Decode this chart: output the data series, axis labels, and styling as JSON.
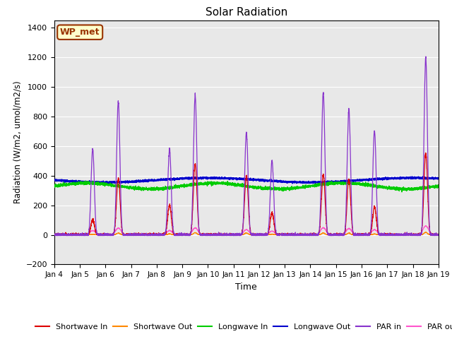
{
  "title": "Solar Radiation",
  "xlabel": "Time",
  "ylabel": "Radiation (W/m2, umol/m2/s)",
  "ylim": [
    -200,
    1450
  ],
  "yticks": [
    -200,
    0,
    200,
    400,
    600,
    800,
    1000,
    1200,
    1400
  ],
  "xlim": [
    0,
    15
  ],
  "background_color": "#e8e8e8",
  "legend_label": "WP_met",
  "legend_facecolor": "#ffffcc",
  "legend_edgecolor": "#993300",
  "legend_textcolor": "#993300",
  "series_colors": {
    "sw_in": "#dd0000",
    "sw_out": "#ff8800",
    "lw_in": "#00cc00",
    "lw_out": "#0000cc",
    "par_in": "#8833cc",
    "par_out": "#ff55cc"
  },
  "n_days": 15,
  "pts_per_day": 288
}
